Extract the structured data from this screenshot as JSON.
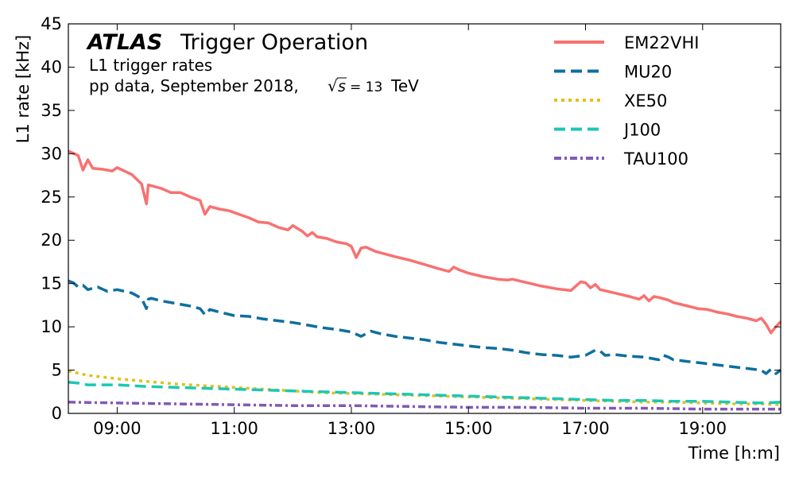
{
  "chart_data": {
    "type": "line",
    "xlabel": "Time [h:m]",
    "ylabel": "L1 rate [kHz]",
    "xlim": [
      "08:10",
      "20:20"
    ],
    "ylim": [
      0,
      45
    ],
    "x_ticks": [
      "09:00",
      "11:00",
      "13:00",
      "15:00",
      "17:00",
      "19:00"
    ],
    "y_ticks": [
      0,
      5,
      10,
      15,
      20,
      25,
      30,
      35,
      40,
      45
    ],
    "grid": false,
    "legend_position": "top-right",
    "annotation": {
      "brand": "ATLAS",
      "subtitle": "Trigger Operation",
      "line1": "L1 trigger rates",
      "line2_prefix": "pp data, September 2018, ",
      "sqrt_symbol": "√",
      "sqrt_arg": "s",
      "equals_value": "= 13",
      "unit": "TeV"
    },
    "series": [
      {
        "name": "EM22VHI",
        "color": "#f87171",
        "dash": "solid",
        "x": [
          "08:10",
          "08:20",
          "08:25",
          "08:30",
          "08:35",
          "08:45",
          "08:55",
          "09:00",
          "09:15",
          "09:25",
          "09:30",
          "09:32",
          "09:35",
          "09:45",
          "09:55",
          "10:05",
          "10:15",
          "10:25",
          "10:30",
          "10:35",
          "10:45",
          "10:55",
          "11:05",
          "11:15",
          "11:25",
          "11:35",
          "11:45",
          "11:55",
          "12:00",
          "12:10",
          "12:15",
          "12:20",
          "12:25",
          "12:35",
          "12:45",
          "12:55",
          "13:00",
          "13:05",
          "13:10",
          "13:15",
          "13:25",
          "13:35",
          "13:45",
          "14:00",
          "14:15",
          "14:30",
          "14:40",
          "14:45",
          "14:50",
          "15:00",
          "15:15",
          "15:30",
          "15:40",
          "15:45",
          "16:00",
          "16:15",
          "16:30",
          "16:45",
          "16:55",
          "17:00",
          "17:05",
          "17:10",
          "17:15",
          "17:30",
          "17:45",
          "17:55",
          "18:00",
          "18:05",
          "18:10",
          "18:15",
          "18:25",
          "18:30",
          "18:45",
          "18:55",
          "19:05",
          "19:15",
          "19:25",
          "19:35",
          "19:45",
          "19:55",
          "20:00",
          "20:05",
          "20:10",
          "20:15",
          "20:20"
        ],
        "values": [
          30.3,
          29.8,
          28.1,
          29.3,
          28.3,
          28.2,
          28.0,
          28.4,
          27.6,
          26.5,
          24.2,
          26.4,
          26.3,
          26.0,
          25.5,
          25.5,
          25.0,
          24.6,
          23.0,
          23.9,
          23.6,
          23.4,
          23.0,
          22.6,
          22.1,
          22.0,
          21.5,
          21.2,
          21.7,
          21.0,
          20.5,
          20.9,
          20.4,
          20.2,
          19.8,
          19.6,
          19.3,
          18.0,
          19.1,
          19.2,
          18.7,
          18.4,
          18.1,
          17.7,
          17.2,
          16.7,
          16.4,
          16.9,
          16.6,
          16.2,
          15.8,
          15.5,
          15.4,
          15.5,
          15.1,
          14.7,
          14.4,
          14.2,
          15.2,
          15.1,
          14.5,
          14.9,
          14.3,
          13.9,
          13.5,
          13.2,
          13.6,
          13.0,
          13.5,
          13.4,
          13.1,
          12.8,
          12.4,
          12.1,
          12.0,
          11.7,
          11.5,
          11.2,
          11.0,
          10.7,
          11.0,
          10.3,
          9.3,
          10.0,
          10.6
        ]
      },
      {
        "name": "MU20",
        "color": "#0e6f9e",
        "dash": "dashed",
        "x": [
          "08:10",
          "08:15",
          "08:20",
          "08:25",
          "08:30",
          "08:40",
          "08:50",
          "09:00",
          "09:15",
          "09:25",
          "09:30",
          "09:32",
          "09:35",
          "09:45",
          "10:00",
          "10:15",
          "10:25",
          "10:30",
          "10:35",
          "10:45",
          "11:00",
          "11:15",
          "11:30",
          "11:45",
          "12:00",
          "12:15",
          "12:30",
          "12:45",
          "13:00",
          "13:10",
          "13:20",
          "13:30",
          "13:45",
          "14:00",
          "14:15",
          "14:30",
          "14:45",
          "15:00",
          "15:15",
          "15:30",
          "15:45",
          "16:00",
          "16:15",
          "16:30",
          "16:45",
          "17:00",
          "17:10",
          "17:15",
          "17:20",
          "17:30",
          "17:45",
          "18:00",
          "18:15",
          "18:20",
          "18:25",
          "18:30",
          "18:45",
          "19:00",
          "19:15",
          "19:30",
          "19:45",
          "20:00",
          "20:05",
          "20:10",
          "20:15",
          "20:20"
        ],
        "values": [
          15.3,
          15.1,
          14.6,
          14.8,
          14.3,
          14.6,
          14.1,
          14.3,
          13.9,
          13.3,
          12.1,
          13.2,
          13.3,
          13.0,
          12.7,
          12.4,
          12.1,
          11.4,
          12.0,
          11.7,
          11.3,
          11.2,
          10.9,
          10.7,
          10.5,
          10.2,
          9.9,
          9.7,
          9.4,
          8.9,
          9.5,
          9.2,
          8.9,
          8.7,
          8.5,
          8.2,
          8.0,
          7.8,
          7.6,
          7.5,
          7.3,
          7.0,
          6.8,
          6.7,
          6.5,
          6.7,
          7.3,
          7.2,
          6.7,
          6.8,
          6.6,
          6.5,
          6.2,
          6.7,
          6.5,
          6.2,
          6.0,
          5.8,
          5.6,
          5.4,
          5.2,
          5.0,
          4.6,
          5.1,
          4.6,
          5.0
        ]
      },
      {
        "name": "XE50",
        "color": "#e3c01c",
        "dash": "dotted",
        "x": [
          "08:10",
          "08:30",
          "09:00",
          "09:30",
          "10:00",
          "10:30",
          "11:00",
          "11:30",
          "12:00",
          "12:30",
          "13:00",
          "13:30",
          "14:00",
          "14:30",
          "15:00",
          "15:30",
          "16:00",
          "16:30",
          "17:00",
          "17:30",
          "18:00",
          "18:30",
          "19:00",
          "19:30",
          "20:00",
          "20:20"
        ],
        "values": [
          4.9,
          4.4,
          4.0,
          3.7,
          3.4,
          3.2,
          3.0,
          2.8,
          2.6,
          2.4,
          2.3,
          2.2,
          2.1,
          2.0,
          1.9,
          1.8,
          1.7,
          1.6,
          1.5,
          1.4,
          1.3,
          1.3,
          1.2,
          1.1,
          1.1,
          1.0
        ]
      },
      {
        "name": "J100",
        "color": "#1cc7b5",
        "dash": "dashed",
        "x": [
          "08:10",
          "08:20",
          "08:30",
          "09:00",
          "09:30",
          "10:00",
          "10:30",
          "11:00",
          "11:30",
          "12:00",
          "12:30",
          "13:00",
          "13:30",
          "14:00",
          "14:30",
          "15:00",
          "15:30",
          "16:00",
          "16:30",
          "17:00",
          "17:30",
          "18:00",
          "18:30",
          "19:00",
          "19:30",
          "20:00",
          "20:20"
        ],
        "values": [
          3.6,
          3.5,
          3.3,
          3.3,
          3.1,
          3.0,
          2.9,
          2.8,
          2.7,
          2.6,
          2.5,
          2.4,
          2.3,
          2.2,
          2.1,
          2.0,
          1.9,
          1.8,
          1.7,
          1.6,
          1.5,
          1.5,
          1.4,
          1.4,
          1.3,
          1.2,
          1.3
        ]
      },
      {
        "name": "TAU100",
        "color": "#8159b8",
        "dash": "dashdot",
        "x": [
          "08:10",
          "09:00",
          "10:00",
          "11:00",
          "12:00",
          "13:00",
          "14:00",
          "15:00",
          "16:00",
          "17:00",
          "18:00",
          "19:00",
          "20:00",
          "20:20"
        ],
        "values": [
          1.3,
          1.2,
          1.1,
          1.0,
          0.9,
          0.9,
          0.8,
          0.7,
          0.7,
          0.6,
          0.6,
          0.5,
          0.5,
          0.5
        ]
      }
    ]
  }
}
